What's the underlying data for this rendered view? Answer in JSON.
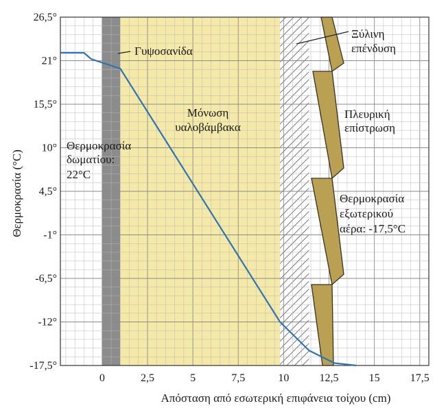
{
  "chart_data": {
    "type": "line",
    "xlabel": "Απόσταση από εσωτερική επιφάνεια τοίχου (cm)",
    "ylabel": "Θερμοκρασία (°C)",
    "xlim": [
      -2.3,
      18
    ],
    "ylim": [
      -17.5,
      26.5
    ],
    "x_ticks": [
      0,
      2.5,
      5,
      7.5,
      10,
      12.5,
      15,
      17.5
    ],
    "x_tick_labels": [
      "0",
      "2,5",
      "5",
      "7,5",
      "10",
      "12,5",
      "15",
      "17,5"
    ],
    "y_ticks": [
      26.5,
      21,
      15.5,
      10,
      4.5,
      -1,
      -6.5,
      -12,
      -17.5
    ],
    "y_tick_labels": [
      "26,5°",
      "21°",
      "15,5°",
      "10°",
      "4,5°",
      "-1°",
      "-6,5°",
      "-12°",
      "-17,5°"
    ],
    "grid": true,
    "layers": [
      {
        "name": "Γυψοσανίδα",
        "x_start": 0,
        "x_end": 1,
        "color": "#8c8c8c"
      },
      {
        "name": "Μόνωση υαλοβάμβακα",
        "x_start": 1,
        "x_end": 9.8,
        "color": "#f5e9a8"
      },
      {
        "name": "Ξύλινη επένδυση",
        "x_start": 9.8,
        "x_end": 11.4,
        "color": "#ffffff"
      },
      {
        "name": "Πλευρική επίστρωση",
        "x_start": 11.4,
        "x_end": 13,
        "color": "#b9a053"
      }
    ],
    "series": [
      {
        "values": [
          {
            "x": -2.3,
            "y": 22
          },
          {
            "x": -1.0,
            "y": 22
          },
          {
            "x": -0.6,
            "y": 21.2
          },
          {
            "x": 1.0,
            "y": 20
          },
          {
            "x": 9.8,
            "y": -12
          },
          {
            "x": 11.4,
            "y": -15.6
          },
          {
            "x": 12.8,
            "y": -17.2
          },
          {
            "x": 14.0,
            "y": -17.5
          }
        ],
        "color": "#2e74b5"
      }
    ],
    "annotations": {
      "gypsum": "Γυψοσανίδα",
      "insulation": [
        "Μόνωση",
        "υαλοβάμβακα"
      ],
      "room_temp": [
        "Θερμοκρασία",
        "δωματίου:",
        "22°C"
      ],
      "wood": [
        "Ξύλινη",
        "επένδυση"
      ],
      "siding": [
        "Πλευρική",
        "επίστρωση"
      ],
      "outdoor_temp": [
        "Θερμοκρασία",
        "εξωτερικού",
        "αέρα: -17,5°C"
      ]
    }
  }
}
